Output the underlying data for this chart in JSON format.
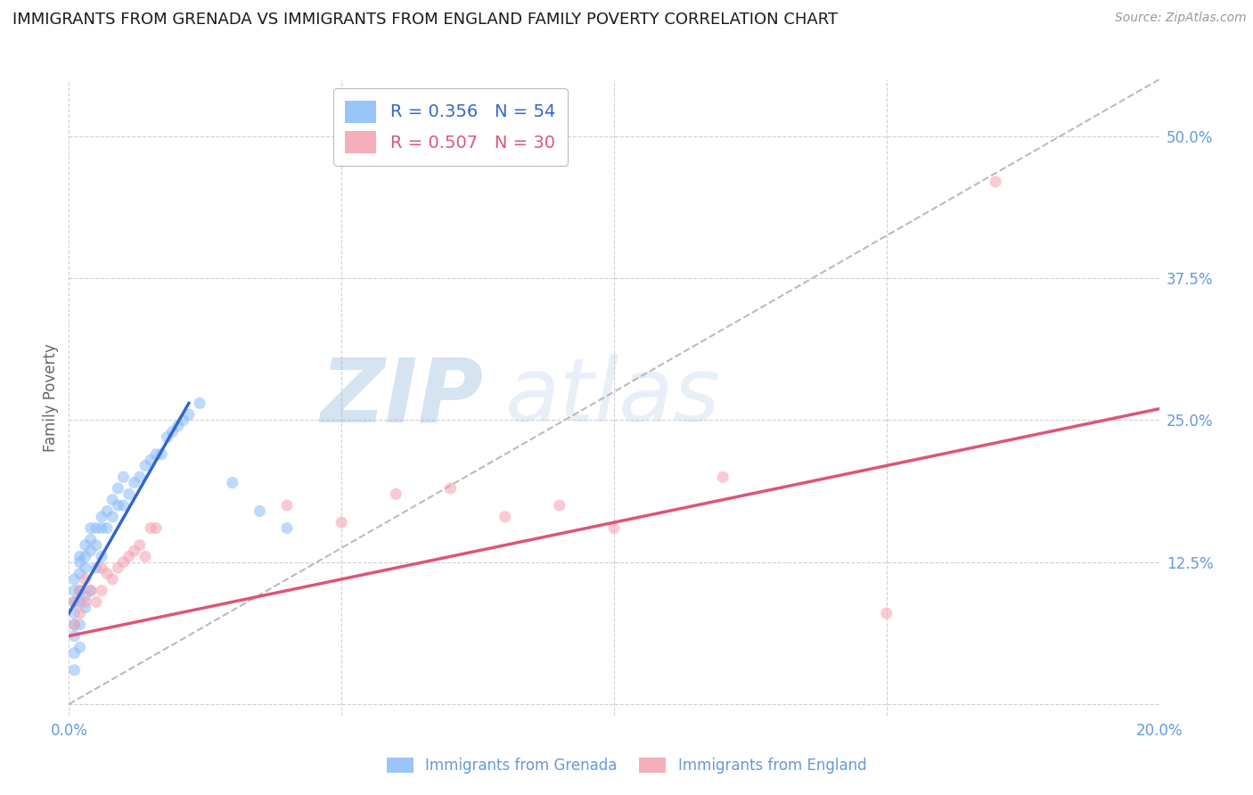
{
  "title": "IMMIGRANTS FROM GRENADA VS IMMIGRANTS FROM ENGLAND FAMILY POVERTY CORRELATION CHART",
  "source": "Source: ZipAtlas.com",
  "ylabel": "Family Poverty",
  "xlim": [
    0.0,
    0.2
  ],
  "ylim": [
    -0.01,
    0.55
  ],
  "yticks": [
    0.0,
    0.125,
    0.25,
    0.375,
    0.5
  ],
  "ytick_labels": [
    "",
    "12.5%",
    "25.0%",
    "37.5%",
    "50.0%"
  ],
  "xticks": [
    0.0,
    0.05,
    0.1,
    0.15,
    0.2
  ],
  "xtick_labels": [
    "0.0%",
    "",
    "",
    "",
    "20.0%"
  ],
  "legend_labels": [
    "R = 0.356   N = 54",
    "R = 0.507   N = 30"
  ],
  "watermark": "ZIPatlas",
  "background_color": "#ffffff",
  "grid_color": "#cccccc",
  "title_fontsize": 13,
  "axis_label_color": "#6699DD",
  "scatter_grenada_x": [
    0.001,
    0.001,
    0.001,
    0.001,
    0.001,
    0.001,
    0.001,
    0.001,
    0.002,
    0.002,
    0.002,
    0.002,
    0.002,
    0.002,
    0.002,
    0.003,
    0.003,
    0.003,
    0.003,
    0.003,
    0.004,
    0.004,
    0.004,
    0.004,
    0.005,
    0.005,
    0.005,
    0.006,
    0.006,
    0.006,
    0.007,
    0.007,
    0.008,
    0.008,
    0.009,
    0.009,
    0.01,
    0.01,
    0.011,
    0.012,
    0.013,
    0.014,
    0.015,
    0.016,
    0.017,
    0.018,
    0.019,
    0.02,
    0.021,
    0.022,
    0.024,
    0.03,
    0.035,
    0.04
  ],
  "scatter_grenada_y": [
    0.06,
    0.07,
    0.08,
    0.09,
    0.1,
    0.11,
    0.045,
    0.03,
    0.09,
    0.1,
    0.115,
    0.125,
    0.13,
    0.05,
    0.07,
    0.12,
    0.13,
    0.14,
    0.085,
    0.095,
    0.135,
    0.145,
    0.155,
    0.1,
    0.14,
    0.155,
    0.12,
    0.155,
    0.165,
    0.13,
    0.155,
    0.17,
    0.165,
    0.18,
    0.175,
    0.19,
    0.175,
    0.2,
    0.185,
    0.195,
    0.2,
    0.21,
    0.215,
    0.22,
    0.22,
    0.235,
    0.24,
    0.245,
    0.25,
    0.255,
    0.265,
    0.195,
    0.17,
    0.155
  ],
  "scatter_england_x": [
    0.001,
    0.001,
    0.002,
    0.002,
    0.003,
    0.003,
    0.004,
    0.005,
    0.006,
    0.006,
    0.007,
    0.008,
    0.009,
    0.01,
    0.011,
    0.012,
    0.013,
    0.014,
    0.015,
    0.016,
    0.04,
    0.05,
    0.06,
    0.07,
    0.08,
    0.09,
    0.1,
    0.12,
    0.15,
    0.17
  ],
  "scatter_england_y": [
    0.07,
    0.09,
    0.08,
    0.1,
    0.09,
    0.11,
    0.1,
    0.09,
    0.1,
    0.12,
    0.115,
    0.11,
    0.12,
    0.125,
    0.13,
    0.135,
    0.14,
    0.13,
    0.155,
    0.155,
    0.175,
    0.16,
    0.185,
    0.19,
    0.165,
    0.175,
    0.155,
    0.2,
    0.08,
    0.46
  ],
  "diag_line_x": [
    0.0,
    0.2
  ],
  "diag_line_y": [
    0.0,
    0.55
  ],
  "blue_line_x": [
    0.0,
    0.022
  ],
  "blue_line_y": [
    0.08,
    0.265
  ],
  "pink_line_x": [
    0.0,
    0.2
  ],
  "pink_line_y": [
    0.06,
    0.26
  ],
  "scatter_alpha": 0.55,
  "scatter_size": 90,
  "scatter_grenada_color": "#88bbf8",
  "scatter_england_color": "#f5a0b0",
  "blue_line_color": "#3366CC",
  "pink_line_color": "#DD5577",
  "diag_line_color": "#aaaaaa"
}
